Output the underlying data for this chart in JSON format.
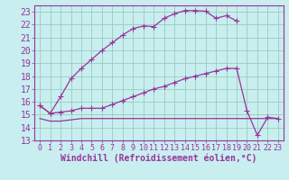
{
  "background_color": "#c8eef0",
  "grid_color": "#99ccbb",
  "line_color": "#993399",
  "xlim": [
    -0.5,
    23.5
  ],
  "ylim": [
    13,
    23.5
  ],
  "xlabel": "Windchill (Refroidissement éolien,°C)",
  "xticks": [
    0,
    1,
    2,
    3,
    4,
    5,
    6,
    7,
    8,
    9,
    10,
    11,
    12,
    13,
    14,
    15,
    16,
    17,
    18,
    19,
    20,
    21,
    22,
    23
  ],
  "yticks": [
    13,
    14,
    15,
    16,
    17,
    18,
    19,
    20,
    21,
    22,
    23
  ],
  "series1_x": [
    0,
    1,
    2,
    3,
    4,
    5,
    6,
    7,
    8,
    9,
    10,
    11,
    12,
    13,
    14,
    15,
    16,
    17,
    18,
    19
  ],
  "series1_y": [
    15.7,
    15.1,
    16.4,
    17.8,
    18.6,
    19.3,
    20.0,
    20.6,
    21.2,
    21.7,
    21.9,
    21.85,
    22.5,
    22.85,
    23.1,
    23.1,
    23.05,
    22.5,
    22.7,
    22.3
  ],
  "series2_x": [
    0,
    1,
    2,
    3,
    4,
    5,
    6,
    7,
    8,
    9,
    10,
    11,
    12,
    13,
    14,
    15,
    16,
    17,
    18,
    19,
    20,
    21,
    22,
    23
  ],
  "series2_y": [
    15.7,
    15.1,
    15.2,
    15.3,
    15.5,
    15.5,
    15.5,
    15.8,
    16.1,
    16.4,
    16.7,
    17.0,
    17.2,
    17.5,
    17.8,
    18.0,
    18.2,
    18.4,
    18.6,
    18.6,
    15.3,
    13.4,
    14.8,
    14.7
  ],
  "series3_x": [
    0,
    1,
    2,
    3,
    4,
    5,
    6,
    7,
    8,
    9,
    10,
    11,
    12,
    13,
    14,
    20,
    21,
    22,
    23
  ],
  "series3_y": [
    14.7,
    14.5,
    14.5,
    14.6,
    14.7,
    14.7,
    14.7,
    14.7,
    14.7,
    14.7,
    14.7,
    14.7,
    14.7,
    14.7,
    14.7,
    14.7,
    14.7,
    14.7,
    14.7
  ],
  "font_size": 6,
  "marker_size": 3,
  "line_width": 0.9
}
